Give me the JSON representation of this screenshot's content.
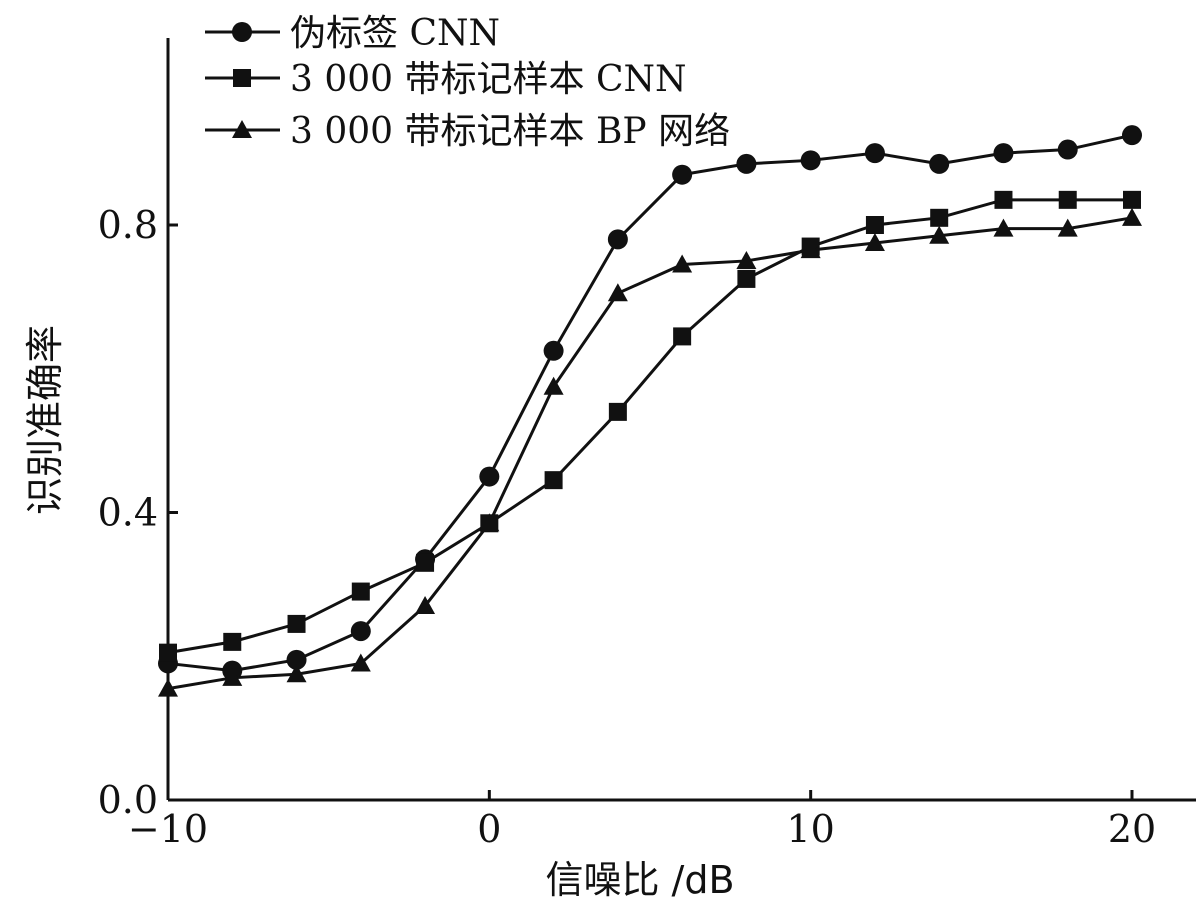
{
  "chart_data": {
    "type": "line",
    "title": "",
    "xlabel": "信噪比 /dB",
    "ylabel": "识别准确率",
    "xlim": [
      -10,
      20
    ],
    "ylim": [
      0.0,
      1.0
    ],
    "x_ticks": [
      -10,
      0,
      10,
      20
    ],
    "x_tick_labels": [
      "−10",
      "0",
      "10",
      "20"
    ],
    "y_ticks": [
      0.0,
      0.4,
      0.8
    ],
    "y_tick_labels": [
      "0.0",
      "0.4",
      "0.8"
    ],
    "grid": false,
    "legend_position": "top-left",
    "x": [
      -10,
      -8,
      -6,
      -4,
      -2,
      0,
      2,
      4,
      6,
      8,
      10,
      12,
      14,
      16,
      18,
      20
    ],
    "series": [
      {
        "name": "伪标签 CNN",
        "marker": "circle",
        "values": [
          0.19,
          0.18,
          0.195,
          0.235,
          0.335,
          0.45,
          0.625,
          0.78,
          0.87,
          0.885,
          0.89,
          0.9,
          0.885,
          0.9,
          0.905,
          0.925
        ]
      },
      {
        "name": "3 000 带标记样本 CNN",
        "marker": "square",
        "values": [
          0.205,
          0.22,
          0.245,
          0.29,
          0.33,
          0.385,
          0.445,
          0.54,
          0.645,
          0.725,
          0.77,
          0.8,
          0.81,
          0.835,
          0.835,
          0.835
        ]
      },
      {
        "name": "3 000 带标记样本 BP 网络",
        "marker": "triangle",
        "values": [
          0.155,
          0.17,
          0.175,
          0.19,
          0.27,
          0.385,
          0.575,
          0.705,
          0.745,
          0.75,
          0.765,
          0.775,
          0.785,
          0.795,
          0.795,
          0.81
        ]
      }
    ]
  }
}
